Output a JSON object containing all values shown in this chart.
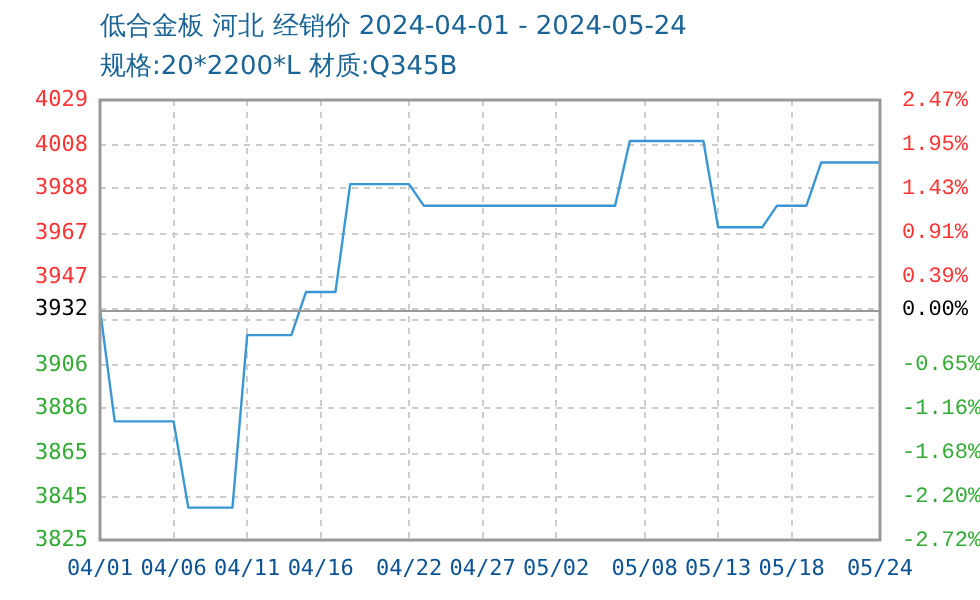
{
  "chart_data": {
    "type": "line",
    "title": "低合金板 河北 经销价 2024-04-01 - 2024-05-24",
    "subtitle": "规格:20*2200*L 材质:Q345B",
    "categories": [
      "04/01",
      null,
      null,
      null,
      null,
      "04/06",
      null,
      null,
      null,
      null,
      "04/11",
      null,
      null,
      null,
      null,
      "04/16",
      null,
      null,
      null,
      null,
      null,
      "04/22",
      null,
      null,
      null,
      null,
      "04/27",
      null,
      null,
      null,
      null,
      "05/02",
      null,
      null,
      null,
      null,
      null,
      "05/08",
      null,
      null,
      null,
      null,
      "05/13",
      null,
      null,
      null,
      null,
      "05/18",
      null,
      null,
      null,
      null,
      null,
      "05/24"
    ],
    "values": [
      3932,
      3880,
      3880,
      3880,
      3880,
      3880,
      3840,
      3840,
      3840,
      3840,
      3920,
      3920,
      3920,
      3920,
      3940,
      3940,
      3940,
      3990,
      3990,
      3990,
      3990,
      3990,
      3980,
      3980,
      3980,
      3980,
      3980,
      3980,
      3980,
      3980,
      3980,
      3980,
      3980,
      3980,
      3980,
      3980,
      4010,
      4010,
      4010,
      4010,
      4010,
      4010,
      3970,
      3970,
      3970,
      3970,
      3980,
      3980,
      3980,
      4000,
      4000,
      4000,
      4000,
      4000
    ],
    "color": "#3a96d4",
    "marker": "none",
    "grid": true,
    "ylim": [
      3825,
      4029
    ],
    "yticks": [
      4029,
      4008,
      3988,
      3967,
      3947,
      3932,
      {
        "value": 3927,
        "label": null
      },
      3906,
      3886,
      3865,
      3845,
      3825
    ],
    "y2lim": [
      -2.72,
      2.47
    ],
    "y2ticks": [
      {
        "value": 2.47,
        "label": "2.47%"
      },
      {
        "value": 1.95,
        "label": "1.95%"
      },
      {
        "value": 1.43,
        "label": "1.43%"
      },
      {
        "value": 0.91,
        "label": "0.91%"
      },
      {
        "value": 0.39,
        "label": "0.39%"
      },
      {
        "value": 0,
        "label": "0.00%"
      },
      {
        "value": -0.65,
        "label": "-0.65%"
      },
      {
        "value": -1.16,
        "label": "-1.16%"
      },
      {
        "value": -1.68,
        "label": "-1.68%"
      },
      {
        "value": -2.2,
        "label": "-2.20%"
      },
      {
        "value": -2.72,
        "label": "-2.72%"
      }
    ],
    "ref_lines": [
      {
        "axis": "y",
        "value": 3932,
        "color": "#999999"
      }
    ]
  }
}
